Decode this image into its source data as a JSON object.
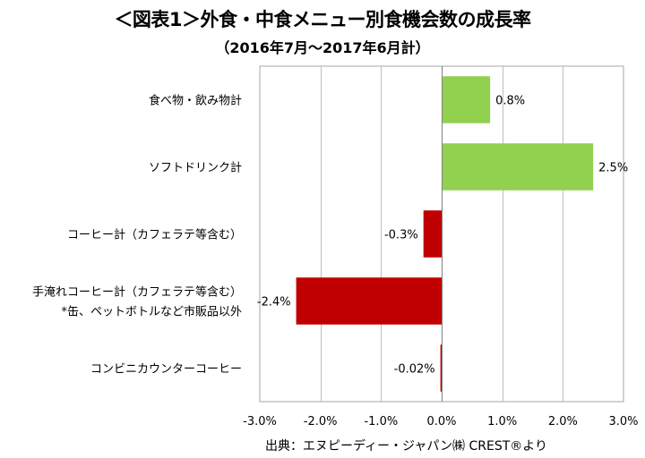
{
  "chart_data": {
    "type": "bar",
    "orientation": "horizontal",
    "title": "＜図表1＞外食・中食メニュー別食機会数の成長率",
    "subtitle": "（2016年7月〜2017年6月計）",
    "categories": [
      [
        "食べ物・飲み物計"
      ],
      [
        "ソフトドリンク計"
      ],
      [
        "コーヒー計（カフェラテ等含む）"
      ],
      [
        "手淹れコーヒー計（カフェラテ等含む）",
        "*缶、ペットボトルなど市販品以外"
      ],
      [
        "コンビニカウンターコーヒー"
      ]
    ],
    "values": [
      0.8,
      2.5,
      -0.3,
      -2.4,
      -0.02
    ],
    "data_labels": [
      "0.8%",
      "2.5%",
      "-0.3%",
      "-2.4%",
      "-0.02%"
    ],
    "bar_colors": [
      "#92d050",
      "#92d050",
      "#c00000",
      "#c00000",
      "#c00000"
    ],
    "xlim": [
      -3.0,
      3.0
    ],
    "xticks": [
      -3.0,
      -2.0,
      -1.0,
      0.0,
      1.0,
      2.0,
      3.0
    ],
    "xtick_labels": [
      "-3.0%",
      "-2.0%",
      "-1.0%",
      "0.0%",
      "1.0%",
      "2.0%",
      "3.0%"
    ],
    "grid": true,
    "legend": "none"
  },
  "source": "出典：エヌピーディー・ジャパン㈱ CREST®より"
}
